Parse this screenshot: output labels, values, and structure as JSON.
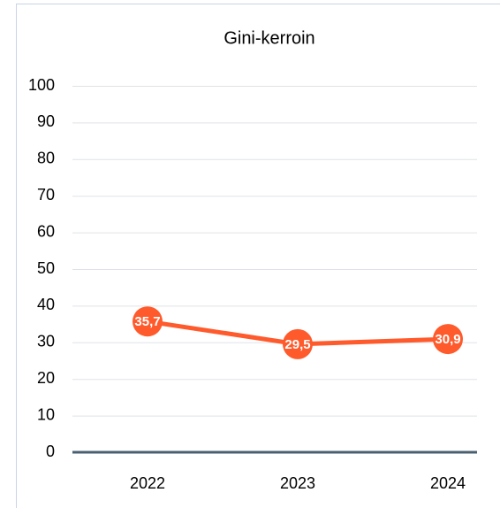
{
  "chart_data": {
    "type": "line",
    "title": "Gini-kerroin",
    "categories": [
      "2022",
      "2023",
      "2024"
    ],
    "series": [
      {
        "color": "#ff5a2c",
        "values": [
          35.7,
          29.5,
          30.9
        ],
        "value_labels": [
          "35,7",
          "29,5",
          "30,9"
        ]
      }
    ],
    "ylim": [
      0,
      100
    ],
    "yticks": [
      0,
      10,
      20,
      30,
      40,
      50,
      60,
      70,
      80,
      90,
      100
    ],
    "grid": true
  }
}
